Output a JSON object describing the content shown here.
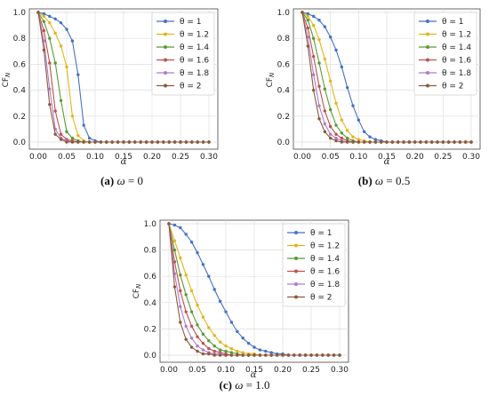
{
  "chart_data": [
    {
      "type": "line",
      "caption_tag": "(a)",
      "caption_omega": "ω",
      "caption_eq": " = 0",
      "xlabel": "α",
      "ylabel": "CF",
      "ylabel_sub": "N",
      "xlim": [
        0,
        0.3
      ],
      "ylim": [
        0,
        1.0
      ],
      "xticks": [
        "0.00",
        "0.05",
        "0.10",
        "0.15",
        "0.20",
        "0.25",
        "0.30"
      ],
      "yticks": [
        "0.0",
        "0.2",
        "0.4",
        "0.6",
        "0.8",
        "1.0"
      ],
      "grid": true,
      "legend_position": "top-right",
      "x": [
        0,
        0.01,
        0.02,
        0.03,
        0.04,
        0.05,
        0.06,
        0.07,
        0.08,
        0.09,
        0.1,
        0.11,
        0.12,
        0.13,
        0.14,
        0.15,
        0.16,
        0.17,
        0.18,
        0.19,
        0.2,
        0.21,
        0.22,
        0.23,
        0.24,
        0.25,
        0.26,
        0.27,
        0.28,
        0.29,
        0.3
      ],
      "series": [
        {
          "name": "θ = 1",
          "color": "#4472c4",
          "values": [
            1.0,
            0.99,
            0.97,
            0.95,
            0.92,
            0.87,
            0.78,
            0.52,
            0.13,
            0.03,
            0.01,
            0,
            0,
            0,
            0,
            0,
            0,
            0,
            0,
            0,
            0,
            0,
            0,
            0,
            0,
            0,
            0,
            0,
            0,
            0,
            0
          ]
        },
        {
          "name": "θ = 1.2",
          "color": "#e3b51c",
          "values": [
            1.0,
            0.97,
            0.92,
            0.84,
            0.74,
            0.58,
            0.2,
            0.05,
            0.01,
            0,
            0,
            0,
            0,
            0,
            0,
            0,
            0,
            0,
            0,
            0,
            0,
            0,
            0,
            0,
            0,
            0,
            0,
            0,
            0,
            0,
            0
          ]
        },
        {
          "name": "θ = 1.4",
          "color": "#5a9a36",
          "values": [
            1.0,
            0.93,
            0.8,
            0.61,
            0.32,
            0.08,
            0.03,
            0.01,
            0,
            0,
            0,
            0,
            0,
            0,
            0,
            0,
            0,
            0,
            0,
            0,
            0,
            0,
            0,
            0,
            0,
            0,
            0,
            0,
            0,
            0,
            0
          ]
        },
        {
          "name": "θ = 1.6",
          "color": "#c0504d",
          "values": [
            1.0,
            0.86,
            0.61,
            0.24,
            0.06,
            0.02,
            0.01,
            0,
            0,
            0,
            0,
            0,
            0,
            0,
            0,
            0,
            0,
            0,
            0,
            0,
            0,
            0,
            0,
            0,
            0,
            0,
            0,
            0,
            0,
            0,
            0
          ]
        },
        {
          "name": "θ = 1.8",
          "color": "#b07cc6",
          "values": [
            1.0,
            0.78,
            0.41,
            0.1,
            0.03,
            0.01,
            0,
            0,
            0,
            0,
            0,
            0,
            0,
            0,
            0,
            0,
            0,
            0,
            0,
            0,
            0,
            0,
            0,
            0,
            0,
            0,
            0,
            0,
            0,
            0,
            0
          ]
        },
        {
          "name": "θ = 2",
          "color": "#8c5a3c",
          "values": [
            1.0,
            0.71,
            0.29,
            0.06,
            0.02,
            0,
            0,
            0,
            0,
            0,
            0,
            0,
            0,
            0,
            0,
            0,
            0,
            0,
            0,
            0,
            0,
            0,
            0,
            0,
            0,
            0,
            0,
            0,
            0,
            0,
            0
          ]
        }
      ]
    },
    {
      "type": "line",
      "caption_tag": "(b)",
      "caption_omega": "ω",
      "caption_eq": " = 0.5",
      "xlabel": "α",
      "ylabel": "CF",
      "ylabel_sub": "N",
      "xlim": [
        0,
        0.3
      ],
      "ylim": [
        0,
        1.0
      ],
      "xticks": [
        "0.00",
        "0.05",
        "0.10",
        "0.15",
        "0.20",
        "0.25",
        "0.30"
      ],
      "yticks": [
        "0.0",
        "0.2",
        "0.4",
        "0.6",
        "0.8",
        "1.0"
      ],
      "grid": true,
      "legend_position": "top-right",
      "x": [
        0,
        0.01,
        0.02,
        0.03,
        0.04,
        0.05,
        0.06,
        0.07,
        0.08,
        0.09,
        0.1,
        0.11,
        0.12,
        0.13,
        0.14,
        0.15,
        0.16,
        0.17,
        0.18,
        0.19,
        0.2,
        0.21,
        0.22,
        0.23,
        0.24,
        0.25,
        0.26,
        0.27,
        0.28,
        0.29,
        0.3
      ],
      "series": [
        {
          "name": "θ = 1",
          "color": "#4472c4",
          "values": [
            1.0,
            0.99,
            0.97,
            0.94,
            0.89,
            0.81,
            0.71,
            0.58,
            0.42,
            0.28,
            0.17,
            0.08,
            0.04,
            0.02,
            0.01,
            0,
            0,
            0,
            0,
            0,
            0,
            0,
            0,
            0,
            0,
            0,
            0,
            0,
            0,
            0,
            0
          ]
        },
        {
          "name": "θ = 1.2",
          "color": "#e3b51c",
          "values": [
            1.0,
            0.97,
            0.9,
            0.79,
            0.64,
            0.47,
            0.3,
            0.17,
            0.09,
            0.04,
            0.02,
            0.01,
            0,
            0,
            0,
            0,
            0,
            0,
            0,
            0,
            0,
            0,
            0,
            0,
            0,
            0,
            0,
            0,
            0,
            0,
            0
          ]
        },
        {
          "name": "θ = 1.4",
          "color": "#5a9a36",
          "values": [
            1.0,
            0.94,
            0.8,
            0.61,
            0.41,
            0.25,
            0.13,
            0.07,
            0.03,
            0.01,
            0,
            0,
            0,
            0,
            0,
            0,
            0,
            0,
            0,
            0,
            0,
            0,
            0,
            0,
            0,
            0,
            0,
            0,
            0,
            0,
            0
          ]
        },
        {
          "name": "θ = 1.6",
          "color": "#c0504d",
          "values": [
            1.0,
            0.88,
            0.66,
            0.43,
            0.24,
            0.12,
            0.06,
            0.03,
            0.01,
            0,
            0,
            0,
            0,
            0,
            0,
            0,
            0,
            0,
            0,
            0,
            0,
            0,
            0,
            0,
            0,
            0,
            0,
            0,
            0,
            0,
            0
          ]
        },
        {
          "name": "θ = 1.8",
          "color": "#b07cc6",
          "values": [
            1.0,
            0.81,
            0.52,
            0.28,
            0.14,
            0.06,
            0.03,
            0.01,
            0,
            0,
            0,
            0,
            0,
            0,
            0,
            0,
            0,
            0,
            0,
            0,
            0,
            0,
            0,
            0,
            0,
            0,
            0,
            0,
            0,
            0,
            0
          ]
        },
        {
          "name": "θ = 2",
          "color": "#8c5a3c",
          "values": [
            1.0,
            0.74,
            0.4,
            0.18,
            0.08,
            0.03,
            0.01,
            0,
            0,
            0,
            0,
            0,
            0,
            0,
            0,
            0,
            0,
            0,
            0,
            0,
            0,
            0,
            0,
            0,
            0,
            0,
            0,
            0,
            0,
            0,
            0
          ]
        }
      ]
    },
    {
      "type": "line",
      "caption_tag": "(c)",
      "caption_omega": "ω",
      "caption_eq": " = 1.0",
      "xlabel": "α",
      "ylabel": "CF",
      "ylabel_sub": "N",
      "xlim": [
        0,
        0.3
      ],
      "ylim": [
        0,
        1.0
      ],
      "xticks": [
        "0.00",
        "0.05",
        "0.10",
        "0.15",
        "0.20",
        "0.25",
        "0.30"
      ],
      "yticks": [
        "0.0",
        "0.2",
        "0.4",
        "0.6",
        "0.8",
        "1.0"
      ],
      "grid": true,
      "legend_position": "top-right",
      "x": [
        0,
        0.01,
        0.02,
        0.03,
        0.04,
        0.05,
        0.06,
        0.07,
        0.08,
        0.09,
        0.1,
        0.11,
        0.12,
        0.13,
        0.14,
        0.15,
        0.16,
        0.17,
        0.18,
        0.19,
        0.2,
        0.21,
        0.22,
        0.23,
        0.24,
        0.25,
        0.26,
        0.27,
        0.28,
        0.29,
        0.3
      ],
      "series": [
        {
          "name": "θ = 1",
          "color": "#4472c4",
          "values": [
            1.0,
            0.99,
            0.97,
            0.92,
            0.86,
            0.78,
            0.69,
            0.6,
            0.5,
            0.41,
            0.33,
            0.25,
            0.18,
            0.13,
            0.09,
            0.06,
            0.04,
            0.03,
            0.02,
            0.01,
            0.01,
            0,
            0,
            0,
            0,
            0,
            0,
            0,
            0,
            0,
            0
          ]
        },
        {
          "name": "θ = 1.2",
          "color": "#e3b51c",
          "values": [
            1.0,
            0.87,
            0.74,
            0.61,
            0.49,
            0.38,
            0.29,
            0.21,
            0.15,
            0.1,
            0.07,
            0.05,
            0.03,
            0.02,
            0.01,
            0.01,
            0,
            0,
            0,
            0,
            0,
            0,
            0,
            0,
            0,
            0,
            0,
            0,
            0,
            0,
            0
          ]
        },
        {
          "name": "θ = 1.4",
          "color": "#5a9a36",
          "values": [
            1.0,
            0.8,
            0.61,
            0.46,
            0.33,
            0.23,
            0.16,
            0.11,
            0.07,
            0.04,
            0.03,
            0.02,
            0.01,
            0,
            0,
            0,
            0,
            0,
            0,
            0,
            0,
            0,
            0,
            0,
            0,
            0,
            0,
            0,
            0,
            0,
            0
          ]
        },
        {
          "name": "θ = 1.6",
          "color": "#c0504d",
          "values": [
            1.0,
            0.71,
            0.49,
            0.33,
            0.22,
            0.14,
            0.09,
            0.05,
            0.03,
            0.02,
            0.01,
            0,
            0,
            0,
            0,
            0,
            0,
            0,
            0,
            0,
            0,
            0,
            0,
            0,
            0,
            0,
            0,
            0,
            0,
            0,
            0
          ]
        },
        {
          "name": "θ = 1.8",
          "color": "#b07cc6",
          "values": [
            1.0,
            0.62,
            0.37,
            0.22,
            0.13,
            0.07,
            0.04,
            0.02,
            0.01,
            0.01,
            0,
            0,
            0,
            0,
            0,
            0,
            0,
            0,
            0,
            0,
            0,
            0,
            0,
            0,
            0,
            0,
            0,
            0,
            0,
            0,
            0
          ]
        },
        {
          "name": "θ = 2",
          "color": "#8c5a3c",
          "values": [
            1.0,
            0.52,
            0.25,
            0.12,
            0.06,
            0.03,
            0.01,
            0.01,
            0,
            0,
            0,
            0,
            0,
            0,
            0,
            0,
            0,
            0,
            0,
            0,
            0,
            0,
            0,
            0,
            0,
            0,
            0,
            0,
            0,
            0,
            0
          ]
        }
      ]
    }
  ]
}
